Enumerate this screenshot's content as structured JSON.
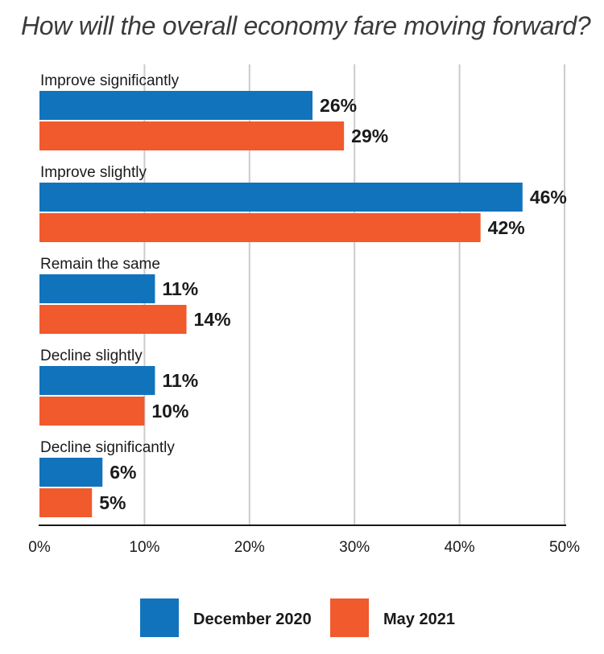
{
  "chart_data": {
    "type": "bar",
    "orientation": "horizontal",
    "title": "How will the overall economy fare moving forward?",
    "categories": [
      "Improve significantly",
      "Improve slightly",
      "Remain the same",
      "Decline slightly",
      "Decline significantly"
    ],
    "series": [
      {
        "name": "December 2020",
        "color": "#1273bd",
        "values": [
          26,
          46,
          11,
          11,
          6
        ],
        "labels": [
          "26%",
          "46%",
          "11%",
          "11%",
          "6%"
        ]
      },
      {
        "name": "May 2021",
        "color": "#f05a2c",
        "values": [
          29,
          42,
          14,
          10,
          5
        ],
        "labels": [
          "29%",
          "42%",
          "14%",
          "10%",
          "5%"
        ]
      }
    ],
    "xlim": [
      0,
      50
    ],
    "x_ticks": [
      "0%",
      "10%",
      "20%",
      "30%",
      "40%",
      "50%"
    ],
    "x_tick_values": [
      0,
      10,
      20,
      30,
      40,
      50
    ],
    "grid": true,
    "legend_position": "bottom"
  }
}
